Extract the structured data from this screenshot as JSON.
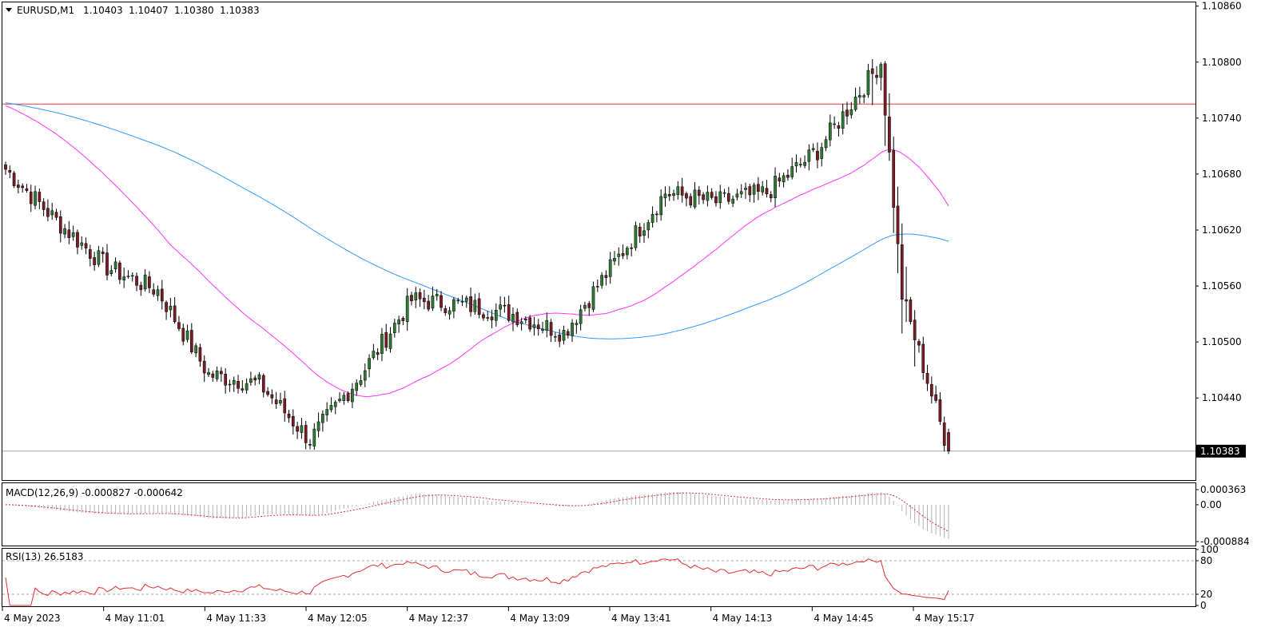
{
  "header": {
    "symbol": "EURUSD,M1",
    "open": "1.10403",
    "high": "1.10407",
    "low": "1.10380",
    "close": "1.10383"
  },
  "colors": {
    "bull_body": "#2f7a35",
    "bear_body": "#7a1c24",
    "wick": "#000000",
    "ma_fast": "#ff33ff",
    "ma_slow": "#3399ff",
    "resistance_line": "#e8383b",
    "price_line": "#8aa5b5",
    "macd_hist": "#b0b0b0",
    "macd_signal": "#e03030",
    "rsi_line": "#e03030",
    "rsi_levels": "#aaaaaa"
  },
  "chart_data": {
    "type": "candlestick",
    "main_panel": {
      "y_ticks": [
        "1.10860",
        "1.10800",
        "1.10740",
        "1.10680",
        "1.10620",
        "1.10560",
        "1.10500",
        "1.10440"
      ],
      "ylim": [
        1.10352,
        1.10864
      ],
      "current_price_label": "1.10383",
      "current_price": 1.10383,
      "resistance_level": 1.10755,
      "timeframe": "M1",
      "x_tick_labels": [
        "4 May 2023",
        "4 May 11:01",
        "4 May 11:33",
        "4 May 12:05",
        "4 May 12:37",
        "4 May 13:09",
        "4 May 13:41",
        "4 May 14:13",
        "4 May 14:45",
        "4 May 15:17"
      ],
      "candle_count": 224,
      "start_close": 1.10685,
      "end_close": 1.10383,
      "candles_estimate": [
        {
          "t": "10:29",
          "close": 1.10685
        },
        {
          "t": "10:45",
          "close": 1.1063
        },
        {
          "t": "11:01",
          "close": 1.1058
        },
        {
          "t": "11:17",
          "close": 1.10555
        },
        {
          "t": "11:33",
          "close": 1.10465
        },
        {
          "t": "11:49",
          "close": 1.10455
        },
        {
          "t": "12:05",
          "close": 1.10395
        },
        {
          "t": "12:21",
          "close": 1.10465
        },
        {
          "t": "12:37",
          "close": 1.10545
        },
        {
          "t": "12:53",
          "close": 1.1054
        },
        {
          "t": "13:09",
          "close": 1.1053
        },
        {
          "t": "13:25",
          "close": 1.1051
        },
        {
          "t": "13:41",
          "close": 1.10585
        },
        {
          "t": "13:57",
          "close": 1.1066
        },
        {
          "t": "14:13",
          "close": 1.1065
        },
        {
          "t": "14:29",
          "close": 1.1066
        },
        {
          "t": "14:45",
          "close": 1.10705
        },
        {
          "t": "15:05",
          "close": 1.108
        },
        {
          "t": "15:10",
          "close": 1.1055
        },
        {
          "t": "15:17",
          "close": 1.10383
        }
      ]
    },
    "macd_panel": {
      "label": "MACD(12,26,9) -0.000827 -0.000642",
      "y_ticks": [
        "0.000363",
        "0.00",
        "-0.000884"
      ],
      "ylim": [
        -0.000884,
        0.000363
      ],
      "main": -0.000827,
      "signal": -0.000642
    },
    "rsi_panel": {
      "label": "RSI(13) 26.5183",
      "y_ticks": [
        "100",
        "80",
        "20",
        "0"
      ],
      "levels": [
        80,
        20
      ],
      "ylim": [
        0,
        100
      ],
      "value": 26.5183
    }
  }
}
